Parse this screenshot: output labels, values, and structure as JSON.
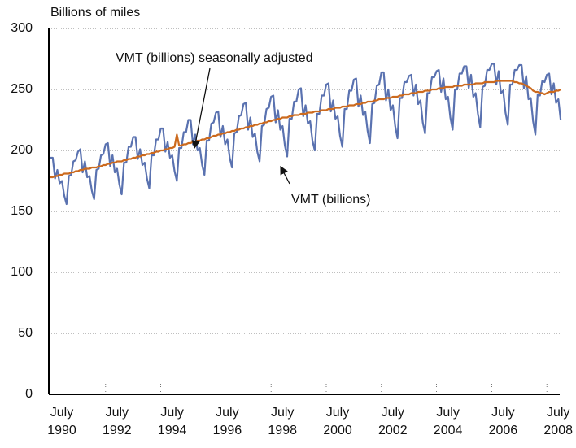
{
  "chart_data": {
    "type": "line",
    "y_label": "Billions of miles",
    "x": [
      "1990-07",
      "1990-08",
      "1990-09",
      "1990-10",
      "1990-11",
      "1990-12",
      "1991-01",
      "1991-02",
      "1991-03",
      "1991-04",
      "1991-05",
      "1991-06",
      "1991-07",
      "1991-08",
      "1991-09",
      "1991-10",
      "1991-11",
      "1991-12",
      "1992-01",
      "1992-02",
      "1992-03",
      "1992-04",
      "1992-05",
      "1992-06",
      "1992-07",
      "1992-08",
      "1992-09",
      "1992-10",
      "1992-11",
      "1992-12",
      "1993-01",
      "1993-02",
      "1993-03",
      "1993-04",
      "1993-05",
      "1993-06",
      "1993-07",
      "1993-08",
      "1993-09",
      "1993-10",
      "1993-11",
      "1993-12",
      "1994-01",
      "1994-02",
      "1994-03",
      "1994-04",
      "1994-05",
      "1994-06",
      "1994-07",
      "1994-08",
      "1994-09",
      "1994-10",
      "1994-11",
      "1994-12",
      "1995-01",
      "1995-02",
      "1995-03",
      "1995-04",
      "1995-05",
      "1995-06",
      "1995-07",
      "1995-08",
      "1995-09",
      "1995-10",
      "1995-11",
      "1995-12",
      "1996-01",
      "1996-02",
      "1996-03",
      "1996-04",
      "1996-05",
      "1996-06",
      "1996-07",
      "1996-08",
      "1996-09",
      "1996-10",
      "1996-11",
      "1996-12",
      "1997-01",
      "1997-02",
      "1997-03",
      "1997-04",
      "1997-05",
      "1997-06",
      "1997-07",
      "1997-08",
      "1997-09",
      "1997-10",
      "1997-11",
      "1997-12",
      "1998-01",
      "1998-02",
      "1998-03",
      "1998-04",
      "1998-05",
      "1998-06",
      "1998-07",
      "1998-08",
      "1998-09",
      "1998-10",
      "1998-11",
      "1998-12",
      "1999-01",
      "1999-02",
      "1999-03",
      "1999-04",
      "1999-05",
      "1999-06",
      "1999-07",
      "1999-08",
      "1999-09",
      "1999-10",
      "1999-11",
      "1999-12",
      "2000-01",
      "2000-02",
      "2000-03",
      "2000-04",
      "2000-05",
      "2000-06",
      "2000-07",
      "2000-08",
      "2000-09",
      "2000-10",
      "2000-11",
      "2000-12",
      "2001-01",
      "2001-02",
      "2001-03",
      "2001-04",
      "2001-05",
      "2001-06",
      "2001-07",
      "2001-08",
      "2001-09",
      "2001-10",
      "2001-11",
      "2001-12",
      "2002-01",
      "2002-02",
      "2002-03",
      "2002-04",
      "2002-05",
      "2002-06",
      "2002-07",
      "2002-08",
      "2002-09",
      "2002-10",
      "2002-11",
      "2002-12",
      "2003-01",
      "2003-02",
      "2003-03",
      "2003-04",
      "2003-05",
      "2003-06",
      "2003-07",
      "2003-08",
      "2003-09",
      "2003-10",
      "2003-11",
      "2003-12",
      "2004-01",
      "2004-02",
      "2004-03",
      "2004-04",
      "2004-05",
      "2004-06",
      "2004-07",
      "2004-08",
      "2004-09",
      "2004-10",
      "2004-11",
      "2004-12",
      "2005-01",
      "2005-02",
      "2005-03",
      "2005-04",
      "2005-05",
      "2005-06",
      "2005-07",
      "2005-08",
      "2005-09",
      "2005-10",
      "2005-11",
      "2005-12",
      "2006-01",
      "2006-02",
      "2006-03",
      "2006-04",
      "2006-05",
      "2006-06",
      "2006-07",
      "2006-08",
      "2006-09",
      "2006-10",
      "2006-11",
      "2006-12",
      "2007-01",
      "2007-02",
      "2007-03",
      "2007-04",
      "2007-05",
      "2007-06",
      "2007-07",
      "2007-08",
      "2007-09",
      "2007-10",
      "2007-11",
      "2007-12",
      "2008-01",
      "2008-02",
      "2008-03",
      "2008-04",
      "2008-05",
      "2008-06",
      "2008-07",
      "2008-08",
      "2008-09",
      "2008-10",
      "2008-11",
      "2008-12",
      "2009-01"
    ],
    "series": [
      {
        "name": "VMT (billions)",
        "color": "#5a72b0",
        "values": [
          194,
          194,
          177,
          184,
          173,
          175,
          163,
          156,
          179,
          180,
          191,
          192,
          199,
          201,
          182,
          191,
          178,
          179,
          167,
          160,
          184,
          185,
          196,
          197,
          205,
          206,
          187,
          196,
          182,
          185,
          172,
          164,
          190,
          190,
          203,
          203,
          211,
          211,
          193,
          201,
          188,
          190,
          177,
          169,
          196,
          196,
          209,
          209,
          218,
          218,
          199,
          207,
          194,
          196,
          183,
          175,
          202,
          202,
          215,
          215,
          225,
          225,
          205,
          213,
          200,
          202,
          188,
          180,
          208,
          208,
          222,
          223,
          231,
          232,
          211,
          220,
          205,
          209,
          194,
          186,
          214,
          215,
          228,
          229,
          238,
          239,
          217,
          227,
          211,
          214,
          199,
          191,
          220,
          221,
          234,
          235,
          244,
          245,
          223,
          233,
          217,
          220,
          204,
          195,
          226,
          226,
          240,
          240,
          250,
          251,
          228,
          237,
          222,
          224,
          208,
          200,
          230,
          230,
          245,
          245,
          254,
          255,
          232,
          241,
          226,
          228,
          212,
          203,
          234,
          234,
          249,
          249,
          258,
          259,
          236,
          245,
          229,
          232,
          216,
          206,
          238,
          239,
          253,
          254,
          264,
          264,
          241,
          250,
          233,
          237,
          220,
          210,
          243,
          243,
          256,
          256,
          261,
          262,
          245,
          254,
          238,
          241,
          223,
          214,
          247,
          247,
          260,
          260,
          265,
          266,
          248,
          259,
          242,
          244,
          227,
          217,
          250,
          250,
          263,
          263,
          269,
          269,
          251,
          262,
          244,
          247,
          230,
          219,
          252,
          253,
          266,
          266,
          271,
          271,
          254,
          265,
          247,
          249,
          231,
          221,
          254,
          254,
          266,
          266,
          270,
          270,
          251,
          261,
          242,
          243,
          224,
          213,
          246,
          245,
          257,
          256,
          262,
          263,
          246,
          255,
          239,
          242,
          225
        ]
      },
      {
        "name": "VMT (billions) seasonally adjusted",
        "color": "#cc6a1e",
        "values": [
          178,
          178,
          179,
          179,
          180,
          180,
          181,
          181,
          181,
          182,
          182,
          183,
          183,
          184,
          184,
          185,
          185,
          185,
          186,
          186,
          186,
          187,
          187,
          188,
          188,
          189,
          189,
          190,
          190,
          191,
          191,
          191,
          192,
          192,
          193,
          193,
          194,
          194,
          195,
          195,
          196,
          196,
          197,
          197,
          198,
          198,
          199,
          199,
          200,
          200,
          201,
          201,
          202,
          202,
          203,
          213,
          204,
          204,
          205,
          205,
          206,
          206,
          207,
          207,
          208,
          208,
          209,
          209,
          210,
          210,
          211,
          212,
          212,
          213,
          213,
          214,
          214,
          215,
          215,
          216,
          216,
          217,
          217,
          218,
          218,
          219,
          219,
          220,
          220,
          221,
          221,
          222,
          222,
          223,
          223,
          224,
          224,
          225,
          225,
          226,
          226,
          227,
          227,
          227,
          228,
          228,
          229,
          229,
          229,
          230,
          230,
          230,
          231,
          231,
          231,
          232,
          232,
          232,
          233,
          233,
          233,
          234,
          234,
          234,
          235,
          235,
          235,
          236,
          236,
          236,
          237,
          237,
          237,
          238,
          238,
          238,
          239,
          239,
          240,
          240,
          240,
          241,
          241,
          242,
          242,
          242,
          243,
          243,
          243,
          244,
          244,
          244,
          245,
          245,
          246,
          246,
          246,
          247,
          247,
          247,
          248,
          248,
          248,
          249,
          249,
          249,
          250,
          250,
          250,
          251,
          251,
          251,
          252,
          252,
          252,
          252,
          253,
          253,
          253,
          253,
          254,
          254,
          254,
          254,
          254,
          255,
          255,
          255,
          255,
          256,
          256,
          256,
          256,
          256,
          257,
          257,
          257,
          257,
          257,
          257,
          257,
          257,
          256,
          256,
          255,
          255,
          254,
          253,
          252,
          251,
          249,
          248,
          248,
          247,
          247,
          246,
          247,
          248,
          248,
          248,
          249,
          249,
          250
        ]
      }
    ],
    "ylim": [
      0,
      300
    ],
    "yticks": [
      0,
      50,
      100,
      150,
      200,
      250,
      300
    ],
    "xticks": [
      {
        "value": "1990-07",
        "label": "July 1990"
      },
      {
        "value": "1992-07",
        "label": "July 1992"
      },
      {
        "value": "1994-07",
        "label": "July 1994"
      },
      {
        "value": "1996-07",
        "label": "July 1996"
      },
      {
        "value": "1998-07",
        "label": "July 1998"
      },
      {
        "value": "2000-07",
        "label": "July 2000"
      },
      {
        "value": "2002-07",
        "label": "July 2002"
      },
      {
        "value": "2004-07",
        "label": "July 2004"
      },
      {
        "value": "2006-07",
        "label": "July 2006"
      },
      {
        "value": "2008-07",
        "label": "July 2008"
      }
    ],
    "grid": true
  }
}
